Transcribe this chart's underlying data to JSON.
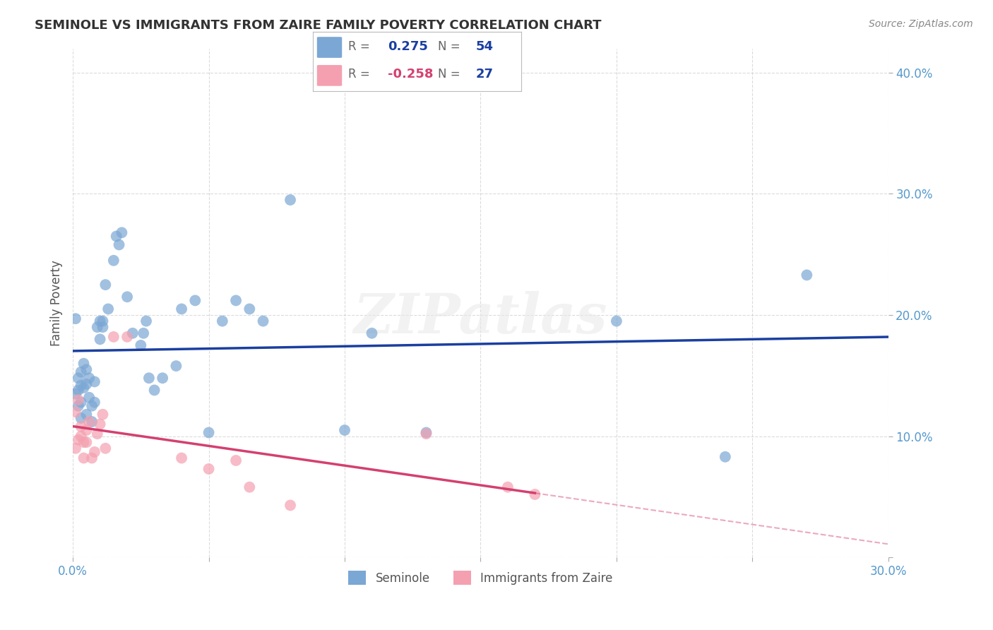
{
  "title": "SEMINOLE VS IMMIGRANTS FROM ZAIRE FAMILY POVERTY CORRELATION CHART",
  "source": "Source: ZipAtlas.com",
  "ylabel": "Family Poverty",
  "xlim": [
    0.0,
    0.3
  ],
  "ylim": [
    0.0,
    0.42
  ],
  "seminole_R": 0.275,
  "seminole_N": 54,
  "zaire_R": -0.258,
  "zaire_N": 27,
  "seminole_color": "#7ba7d4",
  "zaire_color": "#f4a0b0",
  "seminole_line_color": "#1a3fa0",
  "zaire_line_color": "#d44070",
  "background_color": "#ffffff",
  "grid_color": "#cccccc",
  "sem_x": [
    0.001,
    0.001,
    0.002,
    0.002,
    0.002,
    0.003,
    0.003,
    0.003,
    0.003,
    0.004,
    0.004,
    0.005,
    0.005,
    0.005,
    0.006,
    0.006,
    0.007,
    0.007,
    0.008,
    0.008,
    0.009,
    0.01,
    0.01,
    0.011,
    0.011,
    0.012,
    0.013,
    0.015,
    0.016,
    0.017,
    0.018,
    0.02,
    0.022,
    0.025,
    0.026,
    0.027,
    0.028,
    0.03,
    0.033,
    0.038,
    0.04,
    0.045,
    0.05,
    0.055,
    0.06,
    0.065,
    0.07,
    0.08,
    0.1,
    0.11,
    0.13,
    0.2,
    0.24,
    0.27
  ],
  "sem_y": [
    0.197,
    0.135,
    0.148,
    0.125,
    0.138,
    0.153,
    0.128,
    0.142,
    0.115,
    0.16,
    0.14,
    0.155,
    0.143,
    0.118,
    0.148,
    0.132,
    0.125,
    0.112,
    0.145,
    0.128,
    0.19,
    0.195,
    0.18,
    0.195,
    0.19,
    0.225,
    0.205,
    0.245,
    0.265,
    0.258,
    0.268,
    0.215,
    0.185,
    0.175,
    0.185,
    0.195,
    0.148,
    0.138,
    0.148,
    0.158,
    0.205,
    0.212,
    0.103,
    0.195,
    0.212,
    0.205,
    0.195,
    0.295,
    0.105,
    0.185,
    0.103,
    0.195,
    0.083,
    0.233
  ],
  "zai_x": [
    0.001,
    0.001,
    0.002,
    0.002,
    0.003,
    0.003,
    0.004,
    0.004,
    0.005,
    0.005,
    0.006,
    0.007,
    0.008,
    0.009,
    0.01,
    0.011,
    0.012,
    0.015,
    0.02,
    0.04,
    0.05,
    0.06,
    0.065,
    0.08,
    0.13,
    0.16,
    0.17
  ],
  "zai_y": [
    0.12,
    0.09,
    0.13,
    0.097,
    0.108,
    0.1,
    0.095,
    0.082,
    0.095,
    0.105,
    0.112,
    0.082,
    0.087,
    0.102,
    0.11,
    0.118,
    0.09,
    0.182,
    0.182,
    0.082,
    0.073,
    0.08,
    0.058,
    0.043,
    0.102,
    0.058,
    0.052
  ]
}
